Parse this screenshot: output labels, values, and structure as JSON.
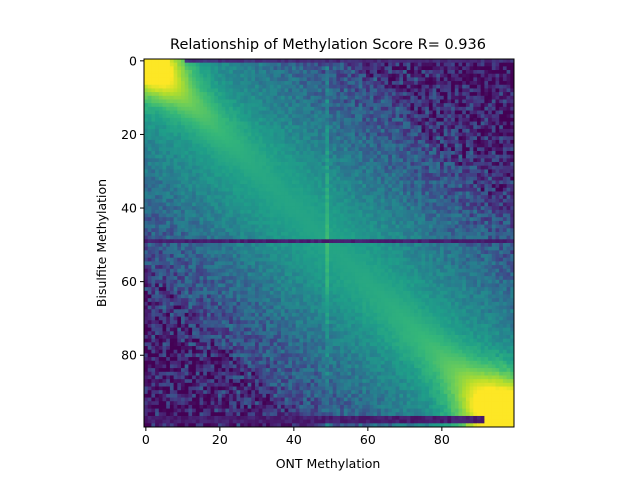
{
  "chart_data": {
    "type": "heatmap",
    "title": "Relationship of Methylation Score R= 0.936",
    "xlabel": "ONT Methylation",
    "ylabel": "Bisulfite Methylation",
    "x_range": [
      0,
      99
    ],
    "y_range": [
      0,
      99
    ],
    "y_axis_inverted": true,
    "xticks": [
      0,
      20,
      40,
      60,
      80
    ],
    "yticks": [
      0,
      20,
      40,
      60,
      80
    ],
    "grid": false,
    "legend": "none",
    "colormap": "viridis",
    "colormap_stops": [
      "#440154",
      "#482878",
      "#3e4989",
      "#31688e",
      "#26828e",
      "#1f9e89",
      "#35b779",
      "#6ece58",
      "#b5de2b",
      "#fde725"
    ],
    "pattern": "Density concentrated along the main diagonal (bright yellow near (0,0) and (99,99)); dark purple far from diagonal; dark horizontal line near y=49; a faint brighter vertical line near x=49; dark horizontal band near y=97-98"
  }
}
